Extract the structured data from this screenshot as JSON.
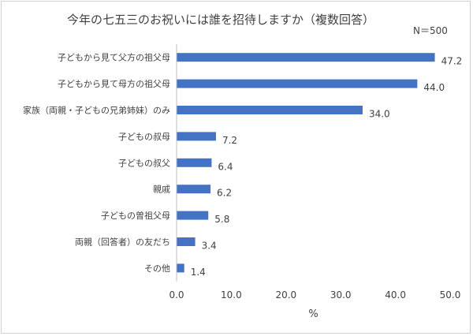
{
  "chart_data": {
    "type": "bar",
    "orientation": "horizontal",
    "title": "今年の七五三のお祝いには誰を招待しますか（複数回答）",
    "note": "N＝500",
    "xlabel": "%",
    "ylabel": "",
    "xlim": [
      0,
      50
    ],
    "xticks": [
      "0.0",
      "10.0",
      "20.0",
      "30.0",
      "40.0",
      "50.0"
    ],
    "grid": false,
    "bar_color": "#4472c4",
    "categories": [
      "子どもから見て父方の祖父母",
      "子どもから見て母方の祖父母",
      "家族（両親・子どもの兄弟姉妹）のみ",
      "子どもの叔母",
      "子どもの叔父",
      "親戚",
      "子どもの曽祖父母",
      "両親（回答者）の友だち",
      "その他"
    ],
    "values": [
      47.2,
      44.0,
      34.0,
      7.2,
      6.4,
      6.2,
      5.8,
      3.4,
      1.4
    ],
    "value_labels": [
      "47.2",
      "44.0",
      "34.0",
      "7.2",
      "6.4",
      "6.2",
      "5.8",
      "3.4",
      "1.4"
    ]
  }
}
